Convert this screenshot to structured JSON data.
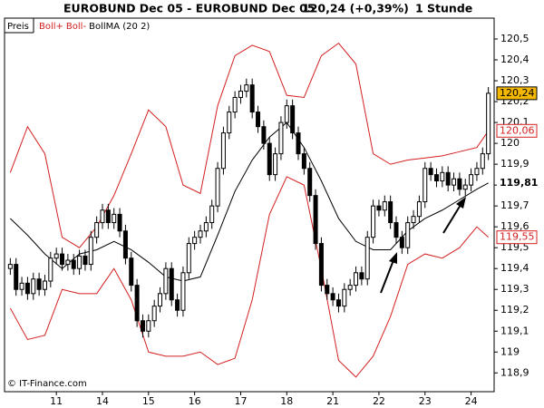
{
  "chart_data": {
    "type": "candlestick",
    "title": "EUROBUND Dec 05 - EUROBUND Dec 05",
    "last_quote": "120,24 (+0,39%)",
    "interval": "1 Stunde",
    "legend_price": "Preis",
    "credit": "© IT-Finance.com",
    "up_color": "#ffffff",
    "down_color": "#000000",
    "open": [
      119.4,
      119.42,
      119.3,
      119.33,
      119.28,
      119.35,
      119.3,
      119.34,
      119.45,
      119.47,
      119.42,
      119.44,
      119.4,
      119.46,
      119.42,
      119.55,
      119.62,
      119.68,
      119.62,
      119.66,
      119.58,
      119.45,
      119.32,
      119.15,
      119.1,
      119.15,
      119.22,
      119.28,
      119.4,
      119.25,
      119.2,
      119.38,
      119.52,
      119.55,
      119.58,
      119.62,
      119.7,
      119.88,
      120.05,
      120.15,
      120.22,
      120.25,
      120.28,
      120.15,
      120.08,
      120.0,
      119.85,
      119.95,
      120.1,
      120.18,
      120.05,
      119.95,
      119.88,
      119.75,
      119.52,
      119.32,
      119.28,
      119.25,
      119.22,
      119.3,
      119.32,
      119.38,
      119.35,
      119.55,
      119.7,
      119.68,
      119.72,
      119.62,
      119.55,
      119.5,
      119.62,
      119.65,
      119.72,
      119.88,
      119.85,
      119.82,
      119.86,
      119.8,
      119.83,
      119.78,
      119.8,
      119.85,
      119.88,
      119.95
    ],
    "high": [
      119.45,
      119.45,
      119.36,
      119.36,
      119.38,
      119.38,
      119.37,
      119.48,
      119.5,
      119.5,
      119.47,
      119.47,
      119.49,
      119.49,
      119.58,
      119.65,
      119.71,
      119.71,
      119.69,
      119.69,
      119.61,
      119.48,
      119.35,
      119.18,
      119.18,
      119.25,
      119.31,
      119.43,
      119.43,
      119.28,
      119.41,
      119.55,
      119.58,
      119.61,
      119.65,
      119.73,
      119.91,
      120.08,
      120.18,
      120.25,
      120.28,
      120.31,
      120.31,
      120.18,
      120.11,
      120.03,
      119.98,
      120.13,
      120.21,
      120.21,
      120.08,
      119.98,
      119.91,
      119.78,
      119.55,
      119.35,
      119.31,
      119.28,
      119.33,
      119.35,
      119.41,
      119.41,
      119.58,
      119.73,
      119.73,
      119.75,
      119.75,
      119.65,
      119.58,
      119.65,
      119.68,
      119.75,
      119.91,
      119.91,
      119.88,
      119.89,
      119.89,
      119.86,
      119.86,
      119.83,
      119.88,
      119.91,
      119.98,
      120.27
    ],
    "low": [
      119.37,
      119.27,
      119.27,
      119.25,
      119.25,
      119.27,
      119.27,
      119.31,
      119.42,
      119.39,
      119.39,
      119.37,
      119.37,
      119.39,
      119.39,
      119.52,
      119.59,
      119.59,
      119.59,
      119.55,
      119.42,
      119.29,
      119.12,
      119.07,
      119.07,
      119.12,
      119.19,
      119.25,
      119.22,
      119.17,
      119.17,
      119.35,
      119.49,
      119.52,
      119.55,
      119.59,
      119.67,
      119.85,
      120.02,
      120.12,
      120.19,
      120.22,
      120.12,
      120.05,
      119.97,
      119.82,
      119.82,
      119.92,
      120.07,
      120.02,
      119.92,
      119.85,
      119.72,
      119.49,
      119.29,
      119.25,
      119.22,
      119.19,
      119.19,
      119.27,
      119.29,
      119.32,
      119.32,
      119.52,
      119.65,
      119.65,
      119.59,
      119.52,
      119.47,
      119.47,
      119.59,
      119.62,
      119.69,
      119.82,
      119.79,
      119.79,
      119.77,
      119.77,
      119.75,
      119.75,
      119.77,
      119.82,
      119.85,
      119.92
    ],
    "close": [
      119.42,
      119.3,
      119.33,
      119.28,
      119.35,
      119.3,
      119.34,
      119.45,
      119.47,
      119.42,
      119.44,
      119.4,
      119.46,
      119.42,
      119.55,
      119.62,
      119.68,
      119.62,
      119.66,
      119.58,
      119.45,
      119.32,
      119.15,
      119.1,
      119.15,
      119.22,
      119.28,
      119.4,
      119.25,
      119.2,
      119.38,
      119.52,
      119.55,
      119.58,
      119.62,
      119.7,
      119.88,
      120.05,
      120.15,
      120.22,
      120.25,
      120.28,
      120.15,
      120.08,
      120.0,
      119.85,
      119.95,
      120.1,
      120.18,
      120.05,
      119.95,
      119.88,
      119.75,
      119.52,
      119.32,
      119.28,
      119.25,
      119.22,
      119.3,
      119.32,
      119.38,
      119.35,
      119.55,
      119.7,
      119.68,
      119.72,
      119.62,
      119.55,
      119.5,
      119.62,
      119.65,
      119.72,
      119.88,
      119.85,
      119.82,
      119.86,
      119.8,
      119.83,
      119.78,
      119.8,
      119.85,
      119.88,
      119.95,
      120.24
    ],
    "close_label": "120,24",
    "close_label_color": "#f5b800",
    "xlim": [
      -1,
      84
    ],
    "xticks": [
      {
        "value": 8,
        "label": "11"
      },
      {
        "value": 16,
        "label": "14"
      },
      {
        "value": 24,
        "label": "15"
      },
      {
        "value": 32,
        "label": "16"
      },
      {
        "value": 40,
        "label": "17"
      },
      {
        "value": 48,
        "label": "18"
      },
      {
        "value": 56,
        "label": "21"
      },
      {
        "value": 64,
        "label": "22"
      },
      {
        "value": 72,
        "label": "23"
      },
      {
        "value": 80,
        "label": "24"
      }
    ],
    "ylim": [
      118.81,
      120.6
    ],
    "yticks": [
      {
        "value": 118.9,
        "label": "118,9"
      },
      119,
      {
        "value": 119.1,
        "label": "119,1"
      },
      {
        "value": 119.2,
        "label": "119,2"
      },
      {
        "value": 119.3,
        "label": "119,3"
      },
      {
        "value": 119.4,
        "label": "119,4"
      },
      {
        "value": 119.5,
        "label": "119,5"
      },
      {
        "value": 119.6,
        "label": "119,6"
      },
      {
        "value": 119.7,
        "label": "119,7"
      },
      {
        "value": 119.8,
        "label": "119,8"
      },
      {
        "value": 119.9,
        "label": "119,9"
      },
      120,
      {
        "value": 120.1,
        "label": "120,1"
      },
      {
        "value": 120.2,
        "label": "120,2"
      },
      {
        "value": 120.3,
        "label": "120,3"
      },
      {
        "value": 120.4,
        "label": "120,4"
      },
      {
        "value": 120.5,
        "label": "120,5"
      }
    ],
    "bands": {
      "x": [
        0,
        3,
        6,
        9,
        12,
        15,
        18,
        21,
        24,
        27,
        30,
        33,
        36,
        39,
        42,
        45,
        48,
        51,
        54,
        57,
        60,
        63,
        66,
        69,
        72,
        75,
        78,
        81,
        83
      ],
      "series": [
        {
          "name": "Boll+",
          "color": "#d42020",
          "values": [
            119.86,
            120.08,
            119.95,
            119.55,
            119.5,
            119.6,
            119.75,
            119.95,
            120.16,
            120.08,
            119.8,
            119.76,
            120.18,
            120.42,
            120.47,
            120.44,
            120.23,
            120.22,
            120.42,
            120.48,
            120.38,
            119.95,
            119.9,
            119.92,
            119.93,
            119.94,
            119.96,
            119.98,
            120.06
          ],
          "end_label": "120,06"
        },
        {
          "name": "Boll-",
          "color": "#d42020",
          "values": [
            119.21,
            119.06,
            119.08,
            119.3,
            119.28,
            119.28,
            119.4,
            119.25,
            119.0,
            118.98,
            118.98,
            119.0,
            118.94,
            118.97,
            119.25,
            119.66,
            119.84,
            119.8,
            119.4,
            118.96,
            118.88,
            118.98,
            119.17,
            119.42,
            119.47,
            119.45,
            119.5,
            119.6,
            119.55
          ],
          "end_label": "119,55"
        },
        {
          "name": "BollMA (20 2)",
          "color": "#000000",
          "values": [
            119.64,
            119.56,
            119.47,
            119.4,
            119.47,
            119.49,
            119.53,
            119.49,
            119.43,
            119.36,
            119.34,
            119.36,
            119.56,
            119.77,
            119.92,
            120.03,
            120.1,
            119.98,
            119.82,
            119.64,
            119.53,
            119.49,
            119.49,
            119.58,
            119.64,
            119.68,
            119.73,
            119.78,
            119.81
          ],
          "end_label": "119,81"
        }
      ]
    }
  }
}
